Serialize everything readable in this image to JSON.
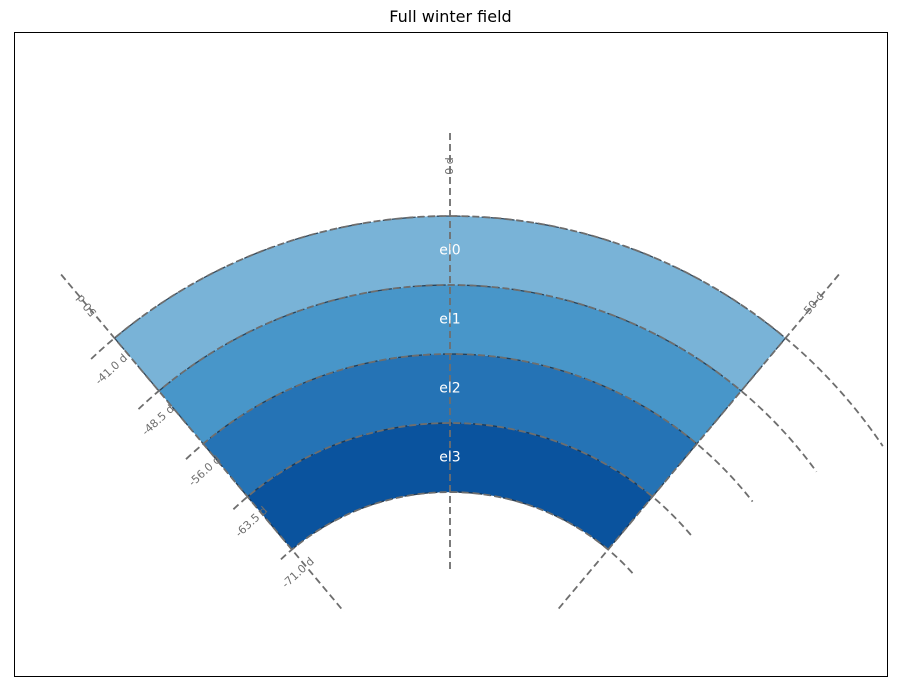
{
  "title": "Full winter field",
  "diagram": {
    "angle_labels": [
      {
        "key": "top",
        "text": "0 d"
      },
      {
        "key": "left",
        "text": "50 d"
      },
      {
        "key": "right",
        "text": "-50 d"
      }
    ],
    "radius_labels": [
      {
        "text": "-41.0 d"
      },
      {
        "text": "-48.5 d"
      },
      {
        "text": "-56.0 d"
      },
      {
        "text": "-63.5 d"
      },
      {
        "text": "-71.0 d"
      }
    ],
    "bands": [
      {
        "label": "el0",
        "color": "#79b3d7"
      },
      {
        "label": "el1",
        "color": "#4896c9"
      },
      {
        "label": "el2",
        "color": "#2573b5"
      },
      {
        "label": "el3",
        "color": "#0a539e"
      }
    ],
    "colors": {
      "guide": "#6e6e6e",
      "boundary": "#1f2f40"
    }
  }
}
